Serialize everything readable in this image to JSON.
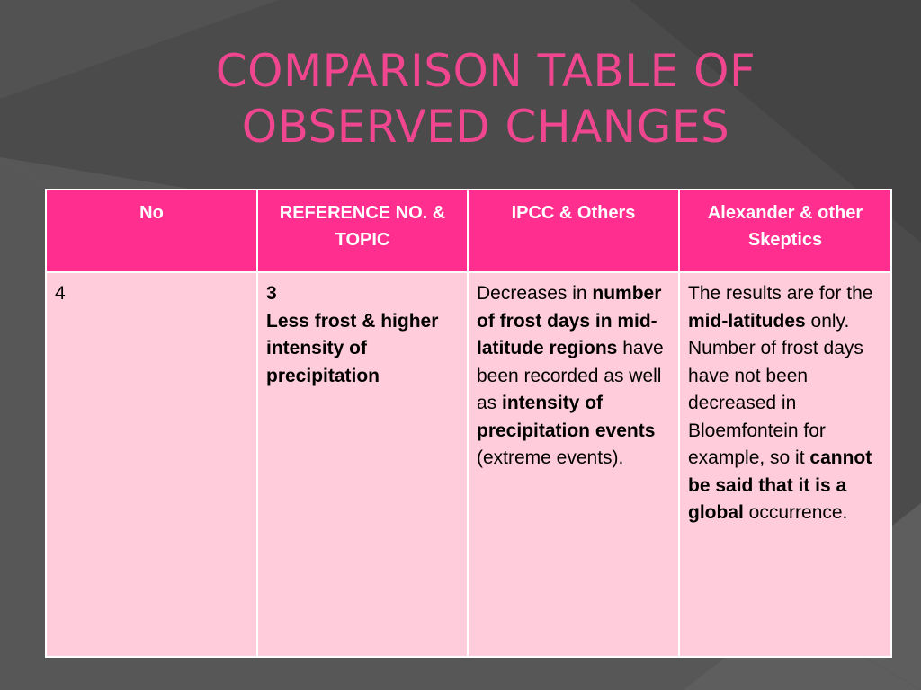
{
  "slide": {
    "title_line1": "COMPARISON TABLE OF",
    "title_line2": "OBSERVED CHANGES"
  },
  "colors": {
    "background": "#4a4a4a",
    "title": "#f0468f",
    "header_bg": "#ff2e8f",
    "cell_bg": "#ffccdb"
  },
  "table": {
    "headers": [
      "No",
      "REFERENCE NO. & TOPIC",
      "IPCC & Others",
      "Alexander & other Skeptics"
    ],
    "row": {
      "no": "4",
      "ref_number": "3",
      "ref_topic": "Less frost & higher intensity of precipitation",
      "ipcc": {
        "t1": "Decreases in ",
        "b1": "number of frost days in mid-latitude regions",
        "t2": " have been recorded as well as ",
        "b2": "intensity of precipitation events",
        "t3": " (extreme events)."
      },
      "skeptics": {
        "t1": "The results are for the ",
        "b1": "mid-latitudes",
        "t2": " only. Number of frost days have not been decreased in Bloemfontein for example, so it ",
        "b2": "cannot be said that it is a global",
        "t3": " occurrence."
      }
    }
  }
}
